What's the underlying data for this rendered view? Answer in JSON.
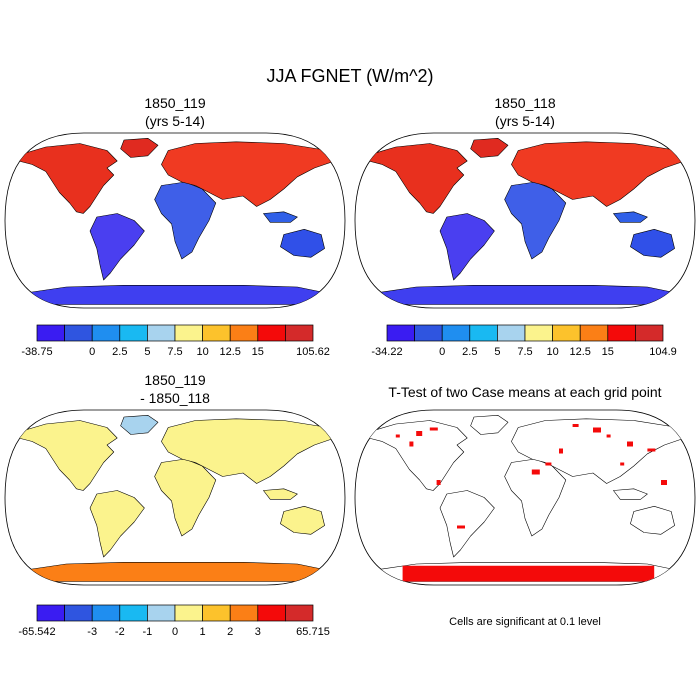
{
  "figure_title": "JJA FGNET (W/m^2)",
  "panels": [
    {
      "id": "p1",
      "title": [
        "1850_119",
        "(yrs 5-14)"
      ],
      "colorbar": {
        "colors": [
          "#3a1cf2",
          "#2f55e0",
          "#1f8ef0",
          "#19b9f2",
          "#a8d3ee",
          "#fbf38d",
          "#fcc22c",
          "#fb7f16",
          "#f40a0a",
          "#d42a2a"
        ],
        "labels": [
          "-38.75",
          "0",
          "2.5",
          "5",
          "7.5",
          "10",
          "12.5",
          "15",
          "105.62"
        ]
      },
      "fills": {
        "na": "#e8301e",
        "greenland": "#e02a20",
        "sa": "#4a3ff0",
        "eurasia": "#f03a22",
        "africa": "#3f5fe8",
        "australia": "#3050e8",
        "antarctica": "#3f3ff0",
        "indonesia": "#3060e8"
      }
    },
    {
      "id": "p2",
      "title": [
        "1850_118",
        "(yrs 5-14)"
      ],
      "colorbar": {
        "colors": [
          "#3a1cf2",
          "#2f55e0",
          "#1f8ef0",
          "#19b9f2",
          "#a8d3ee",
          "#fbf38d",
          "#fcc22c",
          "#fb7f16",
          "#f40a0a",
          "#d42a2a"
        ],
        "labels": [
          "-34.22",
          "0",
          "2.5",
          "5",
          "7.5",
          "10",
          "12.5",
          "15",
          "104.9"
        ]
      },
      "fills": {
        "na": "#e8301e",
        "greenland": "#e02a20",
        "sa": "#4a3ff0",
        "eurasia": "#f03a22",
        "africa": "#3f5fe8",
        "australia": "#3050e8",
        "antarctica": "#3f3ff0",
        "indonesia": "#3060e8"
      }
    },
    {
      "id": "p3",
      "title": [
        "1850_119",
        "- 1850_118"
      ],
      "colorbar": {
        "colors": [
          "#3a1cf2",
          "#2f55e0",
          "#1f8ef0",
          "#19b9f2",
          "#a8d3ee",
          "#fbf38d",
          "#fcc22c",
          "#fb7f16",
          "#f40a0a",
          "#d42a2a"
        ],
        "labels": [
          "-65.542",
          "-3",
          "-2",
          "-1",
          "0",
          "1",
          "2",
          "3",
          "65.715"
        ]
      },
      "fills": {
        "na": "#fbf38d",
        "greenland": "#a8d3ee",
        "sa": "#fbf38d",
        "eurasia": "#fbf38d",
        "africa": "#fbf38d",
        "australia": "#fbf38d",
        "antarctica": "#fb7f16",
        "indonesia": "#fbf38d"
      }
    },
    {
      "id": "p4",
      "title": [
        "T-Test of two Case means at each grid point"
      ],
      "note": "Cells are significant at 0.1 level",
      "fills": {
        "na": "#ffffff",
        "greenland": "#ffffff",
        "sa": "#ffffff",
        "eurasia": "#ffffff",
        "africa": "#ffffff",
        "australia": "#ffffff",
        "antarctica": "#ffffff",
        "indonesia": "#ffffff"
      }
    }
  ]
}
